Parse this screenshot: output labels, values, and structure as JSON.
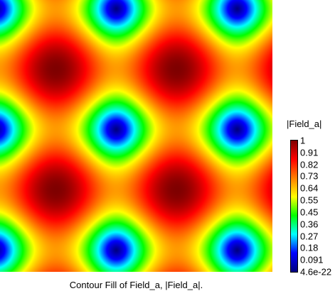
{
  "chart_data": {
    "type": "heatmap",
    "title": "Contour Fill of Field_a, |Field_a|.",
    "colorbar_label": "|Field_a|",
    "colorbar_ticks": [
      "1",
      "0.91",
      "0.82",
      "0.73",
      "0.64",
      "0.55",
      "0.45",
      "0.36",
      "0.27",
      "0.18",
      "0.091",
      "4.6e-22"
    ],
    "value_range": [
      4.6e-22,
      1
    ],
    "colormap": [
      "#00007f",
      "#0000ff",
      "#00ffff",
      "#00ff00",
      "#ffff00",
      "#ff7f00",
      "#ff0000",
      "#7f0000"
    ],
    "field_pattern": "|cos(x)·cos(y)|-like periodic magnitude field; maxima (dark red) and minima (blue) alternating on a square lattice",
    "grid": false
  }
}
